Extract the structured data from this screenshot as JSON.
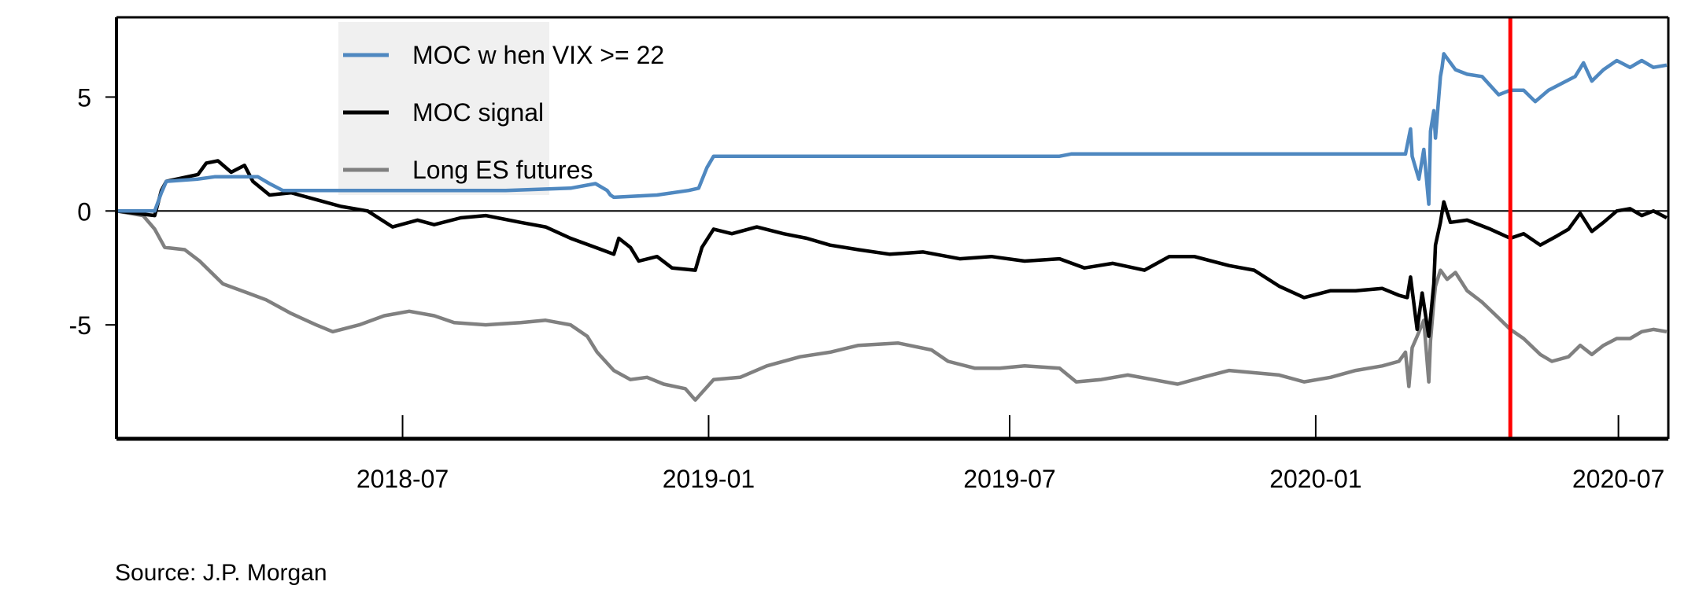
{
  "chart_data": {
    "type": "line",
    "x_axis": {
      "type": "date",
      "range": [
        "2018-01-10",
        "2020-07-31"
      ],
      "ticks": [
        {
          "date": "2018-07-01",
          "label": "2018-07"
        },
        {
          "date": "2019-01-01",
          "label": "2019-01"
        },
        {
          "date": "2019-07-01",
          "label": "2019-07"
        },
        {
          "date": "2020-01-01",
          "label": "2020-01"
        },
        {
          "date": "2020-07-01",
          "label": "2020-07"
        }
      ]
    },
    "y_axis": {
      "range": [
        -10,
        8.5
      ],
      "ticks": [
        {
          "value": 5,
          "label": "5"
        },
        {
          "value": 0,
          "label": "0"
        },
        {
          "value": -5,
          "label": "-5"
        }
      ]
    },
    "zero_line": true,
    "grid": false,
    "legend": {
      "placement": "top-left",
      "background": "#f0f0f0"
    },
    "vertical_marker": {
      "date": "2020-04-27",
      "color": "#ff0000"
    },
    "series": [
      {
        "name": "MOC w hen VIX >= 22",
        "color": "#4f88c0",
        "points": [
          [
            "2018-01-10",
            0
          ],
          [
            "2018-02-02",
            0
          ],
          [
            "2018-02-06",
            0.8
          ],
          [
            "2018-02-09",
            1.3
          ],
          [
            "2018-02-28",
            1.4
          ],
          [
            "2018-03-10",
            1.5
          ],
          [
            "2018-04-05",
            1.5
          ],
          [
            "2018-04-12",
            1.2
          ],
          [
            "2018-04-20",
            0.9
          ],
          [
            "2018-06-01",
            0.9
          ],
          [
            "2018-09-01",
            0.9
          ],
          [
            "2018-10-10",
            1.0
          ],
          [
            "2018-10-25",
            1.2
          ],
          [
            "2018-11-01",
            0.9
          ],
          [
            "2018-11-03",
            0.7
          ],
          [
            "2018-11-05",
            0.6
          ],
          [
            "2018-12-01",
            0.7
          ],
          [
            "2018-12-20",
            0.9
          ],
          [
            "2018-12-26",
            1.0
          ],
          [
            "2018-12-31",
            1.9
          ],
          [
            "2019-01-04",
            2.4
          ],
          [
            "2019-01-10",
            2.4
          ],
          [
            "2019-07-31",
            2.4
          ],
          [
            "2019-08-07",
            2.5
          ],
          [
            "2020-02-20",
            2.5
          ],
          [
            "2020-02-24",
            2.5
          ],
          [
            "2020-02-27",
            3.6
          ],
          [
            "2020-02-28",
            2.4
          ],
          [
            "2020-03-03",
            1.4
          ],
          [
            "2020-03-06",
            2.7
          ],
          [
            "2020-03-09",
            0.3
          ],
          [
            "2020-03-10",
            3.5
          ],
          [
            "2020-03-12",
            4.4
          ],
          [
            "2020-03-13",
            3.2
          ],
          [
            "2020-03-16",
            5.9
          ],
          [
            "2020-03-17",
            6.3
          ],
          [
            "2020-03-18",
            6.9
          ],
          [
            "2020-03-20",
            6.7
          ],
          [
            "2020-03-25",
            6.2
          ],
          [
            "2020-04-01",
            6.0
          ],
          [
            "2020-04-10",
            5.9
          ],
          [
            "2020-04-20",
            5.1
          ],
          [
            "2020-04-27",
            5.3
          ],
          [
            "2020-05-05",
            5.3
          ],
          [
            "2020-05-12",
            4.8
          ],
          [
            "2020-05-20",
            5.3
          ],
          [
            "2020-05-28",
            5.6
          ],
          [
            "2020-06-05",
            5.9
          ],
          [
            "2020-06-10",
            6.5
          ],
          [
            "2020-06-15",
            5.7
          ],
          [
            "2020-06-22",
            6.2
          ],
          [
            "2020-06-30",
            6.6
          ],
          [
            "2020-07-08",
            6.3
          ],
          [
            "2020-07-15",
            6.6
          ],
          [
            "2020-07-22",
            6.3
          ],
          [
            "2020-07-30",
            6.4
          ]
        ]
      },
      {
        "name": "MOC signal",
        "color": "#000000",
        "points": [
          [
            "2018-01-10",
            0
          ],
          [
            "2018-02-02",
            -0.2
          ],
          [
            "2018-02-06",
            0.9
          ],
          [
            "2018-02-09",
            1.3
          ],
          [
            "2018-02-28",
            1.6
          ],
          [
            "2018-03-05",
            2.1
          ],
          [
            "2018-03-12",
            2.2
          ],
          [
            "2018-03-20",
            1.7
          ],
          [
            "2018-03-28",
            2.0
          ],
          [
            "2018-04-02",
            1.3
          ],
          [
            "2018-04-12",
            0.7
          ],
          [
            "2018-04-25",
            0.8
          ],
          [
            "2018-05-10",
            0.5
          ],
          [
            "2018-05-25",
            0.2
          ],
          [
            "2018-06-10",
            0.0
          ],
          [
            "2018-06-25",
            -0.7
          ],
          [
            "2018-07-10",
            -0.4
          ],
          [
            "2018-07-20",
            -0.6
          ],
          [
            "2018-08-05",
            -0.3
          ],
          [
            "2018-08-20",
            -0.2
          ],
          [
            "2018-09-10",
            -0.5
          ],
          [
            "2018-09-25",
            -0.7
          ],
          [
            "2018-10-10",
            -1.2
          ],
          [
            "2018-10-25",
            -1.6
          ],
          [
            "2018-11-05",
            -1.9
          ],
          [
            "2018-11-08",
            -1.2
          ],
          [
            "2018-11-15",
            -1.6
          ],
          [
            "2018-11-20",
            -2.2
          ],
          [
            "2018-12-01",
            -2.0
          ],
          [
            "2018-12-10",
            -2.5
          ],
          [
            "2018-12-24",
            -2.6
          ],
          [
            "2018-12-28",
            -1.6
          ],
          [
            "2019-01-04",
            -0.8
          ],
          [
            "2019-01-15",
            -1.0
          ],
          [
            "2019-01-30",
            -0.7
          ],
          [
            "2019-02-15",
            -1.0
          ],
          [
            "2019-03-01",
            -1.2
          ],
          [
            "2019-03-15",
            -1.5
          ],
          [
            "2019-04-01",
            -1.7
          ],
          [
            "2019-04-20",
            -1.9
          ],
          [
            "2019-05-10",
            -1.8
          ],
          [
            "2019-06-01",
            -2.1
          ],
          [
            "2019-06-20",
            -2.0
          ],
          [
            "2019-07-10",
            -2.2
          ],
          [
            "2019-07-31",
            -2.1
          ],
          [
            "2019-08-15",
            -2.5
          ],
          [
            "2019-09-01",
            -2.3
          ],
          [
            "2019-09-20",
            -2.6
          ],
          [
            "2019-10-05",
            -2.0
          ],
          [
            "2019-10-20",
            -2.0
          ],
          [
            "2019-11-10",
            -2.4
          ],
          [
            "2019-11-25",
            -2.6
          ],
          [
            "2019-12-10",
            -3.3
          ],
          [
            "2019-12-25",
            -3.8
          ],
          [
            "2020-01-10",
            -3.5
          ],
          [
            "2020-01-25",
            -3.5
          ],
          [
            "2020-02-10",
            -3.4
          ],
          [
            "2020-02-20",
            -3.7
          ],
          [
            "2020-02-25",
            -3.8
          ],
          [
            "2020-02-27",
            -2.9
          ],
          [
            "2020-03-02",
            -5.2
          ],
          [
            "2020-03-05",
            -3.6
          ],
          [
            "2020-03-09",
            -5.5
          ],
          [
            "2020-03-12",
            -3.2
          ],
          [
            "2020-03-13",
            -1.5
          ],
          [
            "2020-03-16",
            -0.5
          ],
          [
            "2020-03-18",
            0.4
          ],
          [
            "2020-03-22",
            -0.5
          ],
          [
            "2020-04-01",
            -0.4
          ],
          [
            "2020-04-15",
            -0.8
          ],
          [
            "2020-04-27",
            -1.2
          ],
          [
            "2020-05-05",
            -1.0
          ],
          [
            "2020-05-15",
            -1.5
          ],
          [
            "2020-05-25",
            -1.1
          ],
          [
            "2020-06-01",
            -0.8
          ],
          [
            "2020-06-08",
            -0.1
          ],
          [
            "2020-06-15",
            -0.9
          ],
          [
            "2020-06-22",
            -0.5
          ],
          [
            "2020-06-30",
            0.0
          ],
          [
            "2020-07-08",
            0.1
          ],
          [
            "2020-07-15",
            -0.2
          ],
          [
            "2020-07-22",
            0.0
          ],
          [
            "2020-07-30",
            -0.3
          ]
        ]
      },
      {
        "name": "Long ES futures",
        "color": "#808080",
        "points": [
          [
            "2018-01-10",
            0
          ],
          [
            "2018-01-26",
            -0.2
          ],
          [
            "2018-02-02",
            -0.8
          ],
          [
            "2018-02-08",
            -1.6
          ],
          [
            "2018-02-20",
            -1.7
          ],
          [
            "2018-03-01",
            -2.2
          ],
          [
            "2018-03-15",
            -3.2
          ],
          [
            "2018-03-30",
            -3.6
          ],
          [
            "2018-04-10",
            -3.9
          ],
          [
            "2018-04-25",
            -4.5
          ],
          [
            "2018-05-10",
            -5.0
          ],
          [
            "2018-05-20",
            -5.3
          ],
          [
            "2018-06-05",
            -5.0
          ],
          [
            "2018-06-20",
            -4.6
          ],
          [
            "2018-07-05",
            -4.4
          ],
          [
            "2018-07-20",
            -4.6
          ],
          [
            "2018-08-01",
            -4.9
          ],
          [
            "2018-08-20",
            -5.0
          ],
          [
            "2018-09-10",
            -4.9
          ],
          [
            "2018-09-25",
            -4.8
          ],
          [
            "2018-10-10",
            -5.0
          ],
          [
            "2018-10-20",
            -5.5
          ],
          [
            "2018-10-26",
            -6.2
          ],
          [
            "2018-11-05",
            -7.0
          ],
          [
            "2018-11-15",
            -7.4
          ],
          [
            "2018-11-25",
            -7.3
          ],
          [
            "2018-12-05",
            -7.6
          ],
          [
            "2018-12-18",
            -7.8
          ],
          [
            "2018-12-24",
            -8.3
          ],
          [
            "2019-01-04",
            -7.4
          ],
          [
            "2019-01-20",
            -7.3
          ],
          [
            "2019-02-05",
            -6.8
          ],
          [
            "2019-02-25",
            -6.4
          ],
          [
            "2019-03-15",
            -6.2
          ],
          [
            "2019-04-01",
            -5.9
          ],
          [
            "2019-04-25",
            -5.8
          ],
          [
            "2019-05-15",
            -6.1
          ],
          [
            "2019-05-25",
            -6.6
          ],
          [
            "2019-06-10",
            -6.9
          ],
          [
            "2019-06-25",
            -6.9
          ],
          [
            "2019-07-10",
            -6.8
          ],
          [
            "2019-07-31",
            -6.9
          ],
          [
            "2019-08-10",
            -7.5
          ],
          [
            "2019-08-25",
            -7.4
          ],
          [
            "2019-09-10",
            -7.2
          ],
          [
            "2019-09-25",
            -7.4
          ],
          [
            "2019-10-10",
            -7.6
          ],
          [
            "2019-10-25",
            -7.3
          ],
          [
            "2019-11-10",
            -7.0
          ],
          [
            "2019-11-25",
            -7.1
          ],
          [
            "2019-12-10",
            -7.2
          ],
          [
            "2019-12-25",
            -7.5
          ],
          [
            "2020-01-10",
            -7.3
          ],
          [
            "2020-01-25",
            -7.0
          ],
          [
            "2020-02-10",
            -6.8
          ],
          [
            "2020-02-20",
            -6.6
          ],
          [
            "2020-02-24",
            -6.2
          ],
          [
            "2020-02-26",
            -7.7
          ],
          [
            "2020-02-28",
            -6.0
          ],
          [
            "2020-03-02",
            -5.5
          ],
          [
            "2020-03-06",
            -4.8
          ],
          [
            "2020-03-09",
            -7.5
          ],
          [
            "2020-03-10",
            -5.7
          ],
          [
            "2020-03-12",
            -4.0
          ],
          [
            "2020-03-13",
            -3.3
          ],
          [
            "2020-03-16",
            -2.6
          ],
          [
            "2020-03-20",
            -3.0
          ],
          [
            "2020-03-25",
            -2.7
          ],
          [
            "2020-04-01",
            -3.5
          ],
          [
            "2020-04-10",
            -4.0
          ],
          [
            "2020-04-20",
            -4.7
          ],
          [
            "2020-04-27",
            -5.2
          ],
          [
            "2020-05-05",
            -5.6
          ],
          [
            "2020-05-15",
            -6.3
          ],
          [
            "2020-05-22",
            -6.6
          ],
          [
            "2020-06-01",
            -6.4
          ],
          [
            "2020-06-08",
            -5.9
          ],
          [
            "2020-06-15",
            -6.3
          ],
          [
            "2020-06-22",
            -5.9
          ],
          [
            "2020-06-30",
            -5.6
          ],
          [
            "2020-07-08",
            -5.6
          ],
          [
            "2020-07-15",
            -5.3
          ],
          [
            "2020-07-22",
            -5.2
          ],
          [
            "2020-07-30",
            -5.3
          ]
        ]
      }
    ]
  },
  "footer": {
    "source": "Source:  J.P. Morgan"
  }
}
